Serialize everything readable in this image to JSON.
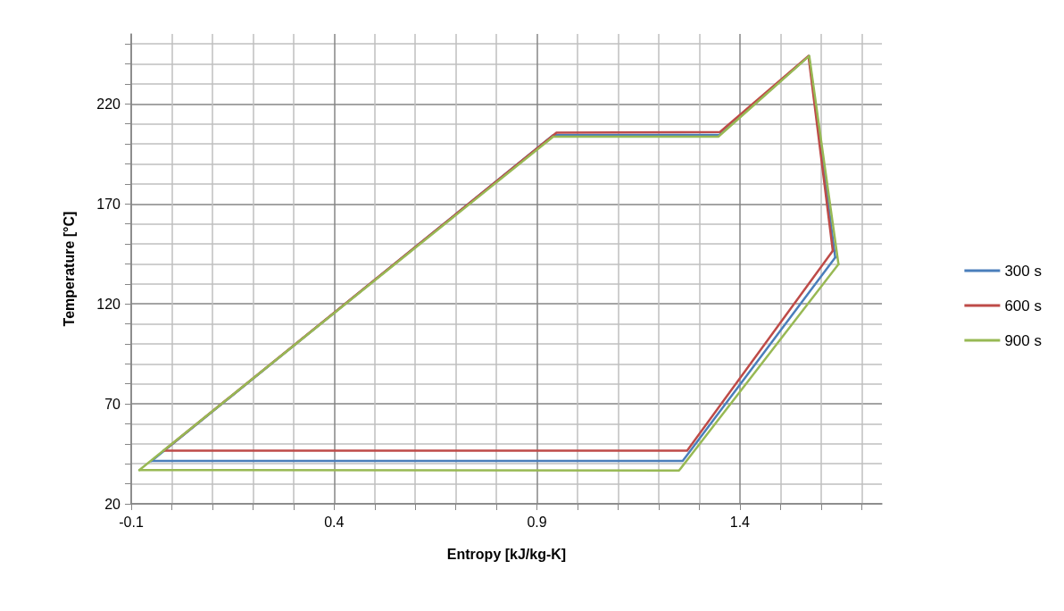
{
  "chart_data": {
    "type": "line",
    "xlabel": "Entropy [kJ/kg-K]",
    "ylabel": "Temperature [°C]",
    "xlim": [
      -0.1,
      1.75
    ],
    "xticks": [
      -0.1,
      {
        "value": 0,
        "label": null
      },
      {
        "value": 0.1,
        "label": null
      },
      {
        "value": 0.2,
        "label": null
      },
      {
        "value": 0.3,
        "label": null
      },
      0.4,
      {
        "value": 0.5,
        "label": null
      },
      {
        "value": 0.6,
        "label": null
      },
      {
        "value": 0.7,
        "label": null
      },
      {
        "value": 0.8,
        "label": null
      },
      0.9,
      {
        "value": 1.0,
        "label": null
      },
      {
        "value": 1.1,
        "label": null
      },
      {
        "value": 1.2,
        "label": null
      },
      {
        "value": 1.3,
        "label": null
      },
      1.4,
      {
        "value": 1.5,
        "label": null
      },
      {
        "value": 1.6,
        "label": null
      },
      {
        "value": 1.7,
        "label": null
      }
    ],
    "ylim": [
      20,
      255
    ],
    "yticks": [
      20,
      {
        "value": 30,
        "label": null
      },
      {
        "value": 40,
        "label": null
      },
      {
        "value": 50,
        "label": null
      },
      {
        "value": 60,
        "label": null
      },
      70,
      {
        "value": 80,
        "label": null
      },
      {
        "value": 90,
        "label": null
      },
      {
        "value": 100,
        "label": null
      },
      {
        "value": 110,
        "label": null
      },
      120,
      {
        "value": 130,
        "label": null
      },
      {
        "value": 140,
        "label": null
      },
      {
        "value": 150,
        "label": null
      },
      {
        "value": 160,
        "label": null
      },
      170,
      {
        "value": 180,
        "label": null
      },
      {
        "value": 190,
        "label": null
      },
      {
        "value": 200,
        "label": null
      },
      {
        "value": 210,
        "label": null
      },
      220,
      {
        "value": 230,
        "label": null
      },
      {
        "value": 240,
        "label": null
      },
      {
        "value": 250,
        "label": null
      }
    ],
    "grid": true,
    "legend": "right",
    "marker": "none",
    "line_style": "solid",
    "series": [
      {
        "name": "300 s",
        "color": "#4a7ebb",
        "x": [
          -0.05,
          0.94,
          1.35,
          1.57,
          1.635
        ],
        "values": [
          41.4,
          204.4,
          204.6,
          244,
          143.2
        ]
      },
      {
        "color": "#4a7ebb",
        "x": [
          -0.05,
          1.259,
          1.635
        ],
        "values": [
          41.4,
          41.4,
          143.2
        ]
      },
      {
        "name": "600 s",
        "color": "#be4b48",
        "x": [
          -0.02,
          0.948,
          1.351,
          1.569,
          1.629
        ],
        "values": [
          46.6,
          205.6,
          206,
          244,
          146.5
        ]
      },
      {
        "color": "#be4b48",
        "x": [
          -0.02,
          1.27,
          1.629
        ],
        "values": [
          46.6,
          46.6,
          146.5
        ]
      },
      {
        "name": "900 s",
        "color": "#98b954",
        "x": [
          -0.08,
          0.94,
          1.347,
          1.571,
          1.643
        ],
        "values": [
          36.9,
          203.6,
          203.6,
          244,
          139.8
        ]
      },
      {
        "color": "#98b954",
        "x": [
          -0.08,
          1.25,
          1.643
        ],
        "values": [
          36.9,
          36.6,
          139.8
        ]
      }
    ]
  }
}
